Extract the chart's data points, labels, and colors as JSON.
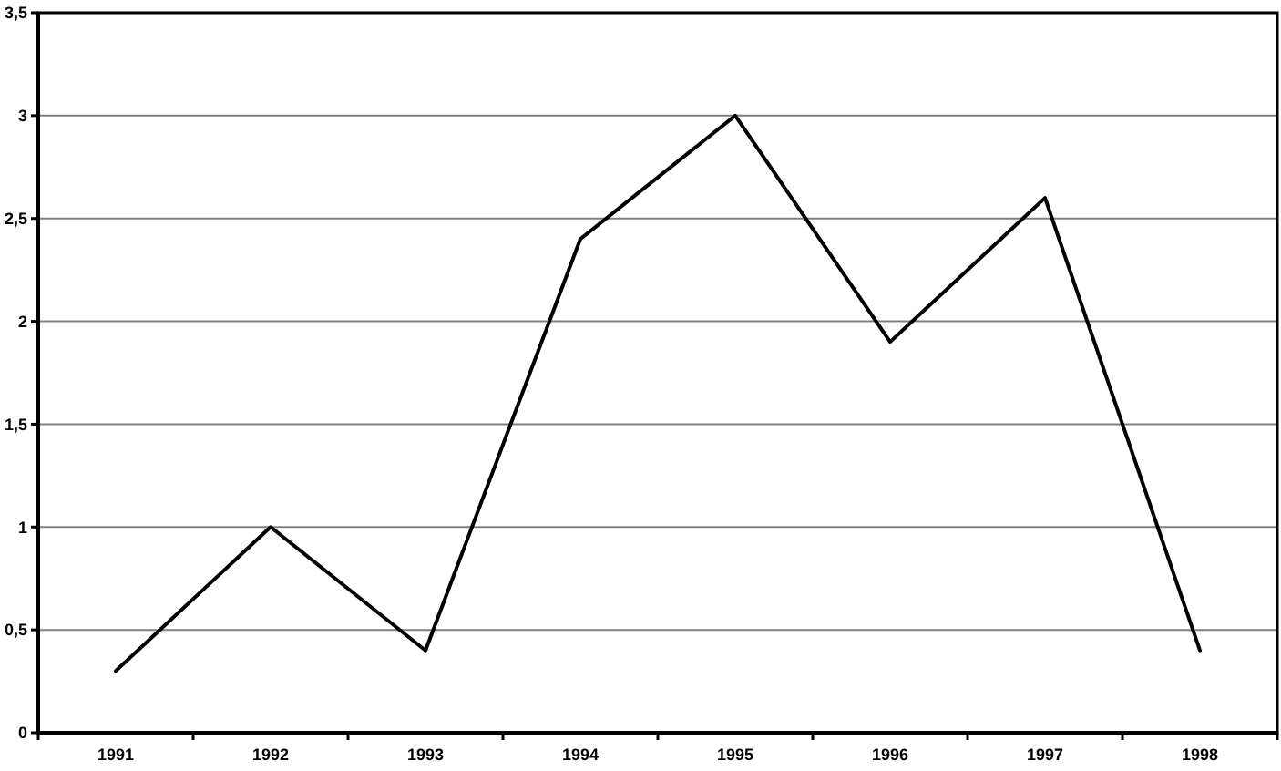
{
  "chart_data": {
    "type": "line",
    "categories": [
      "1991",
      "1992",
      "1993",
      "1994",
      "1995",
      "1996",
      "1997",
      "1998"
    ],
    "series": [
      {
        "color": "#000000",
        "values": [
          0.3,
          1.0,
          0.4,
          2.4,
          3.0,
          1.9,
          2.6,
          0.4
        ]
      }
    ],
    "ylim": [
      0,
      3.5
    ],
    "yticks": [
      0,
      {
        "value": 0.5,
        "label": "0,5"
      },
      1,
      {
        "value": 1.5,
        "label": "1,5"
      },
      2,
      {
        "value": 2.5,
        "label": "2,5"
      },
      3,
      {
        "value": 3.5,
        "label": "3,5"
      }
    ],
    "grid": "y",
    "marker": "none",
    "line_style": "solid"
  }
}
